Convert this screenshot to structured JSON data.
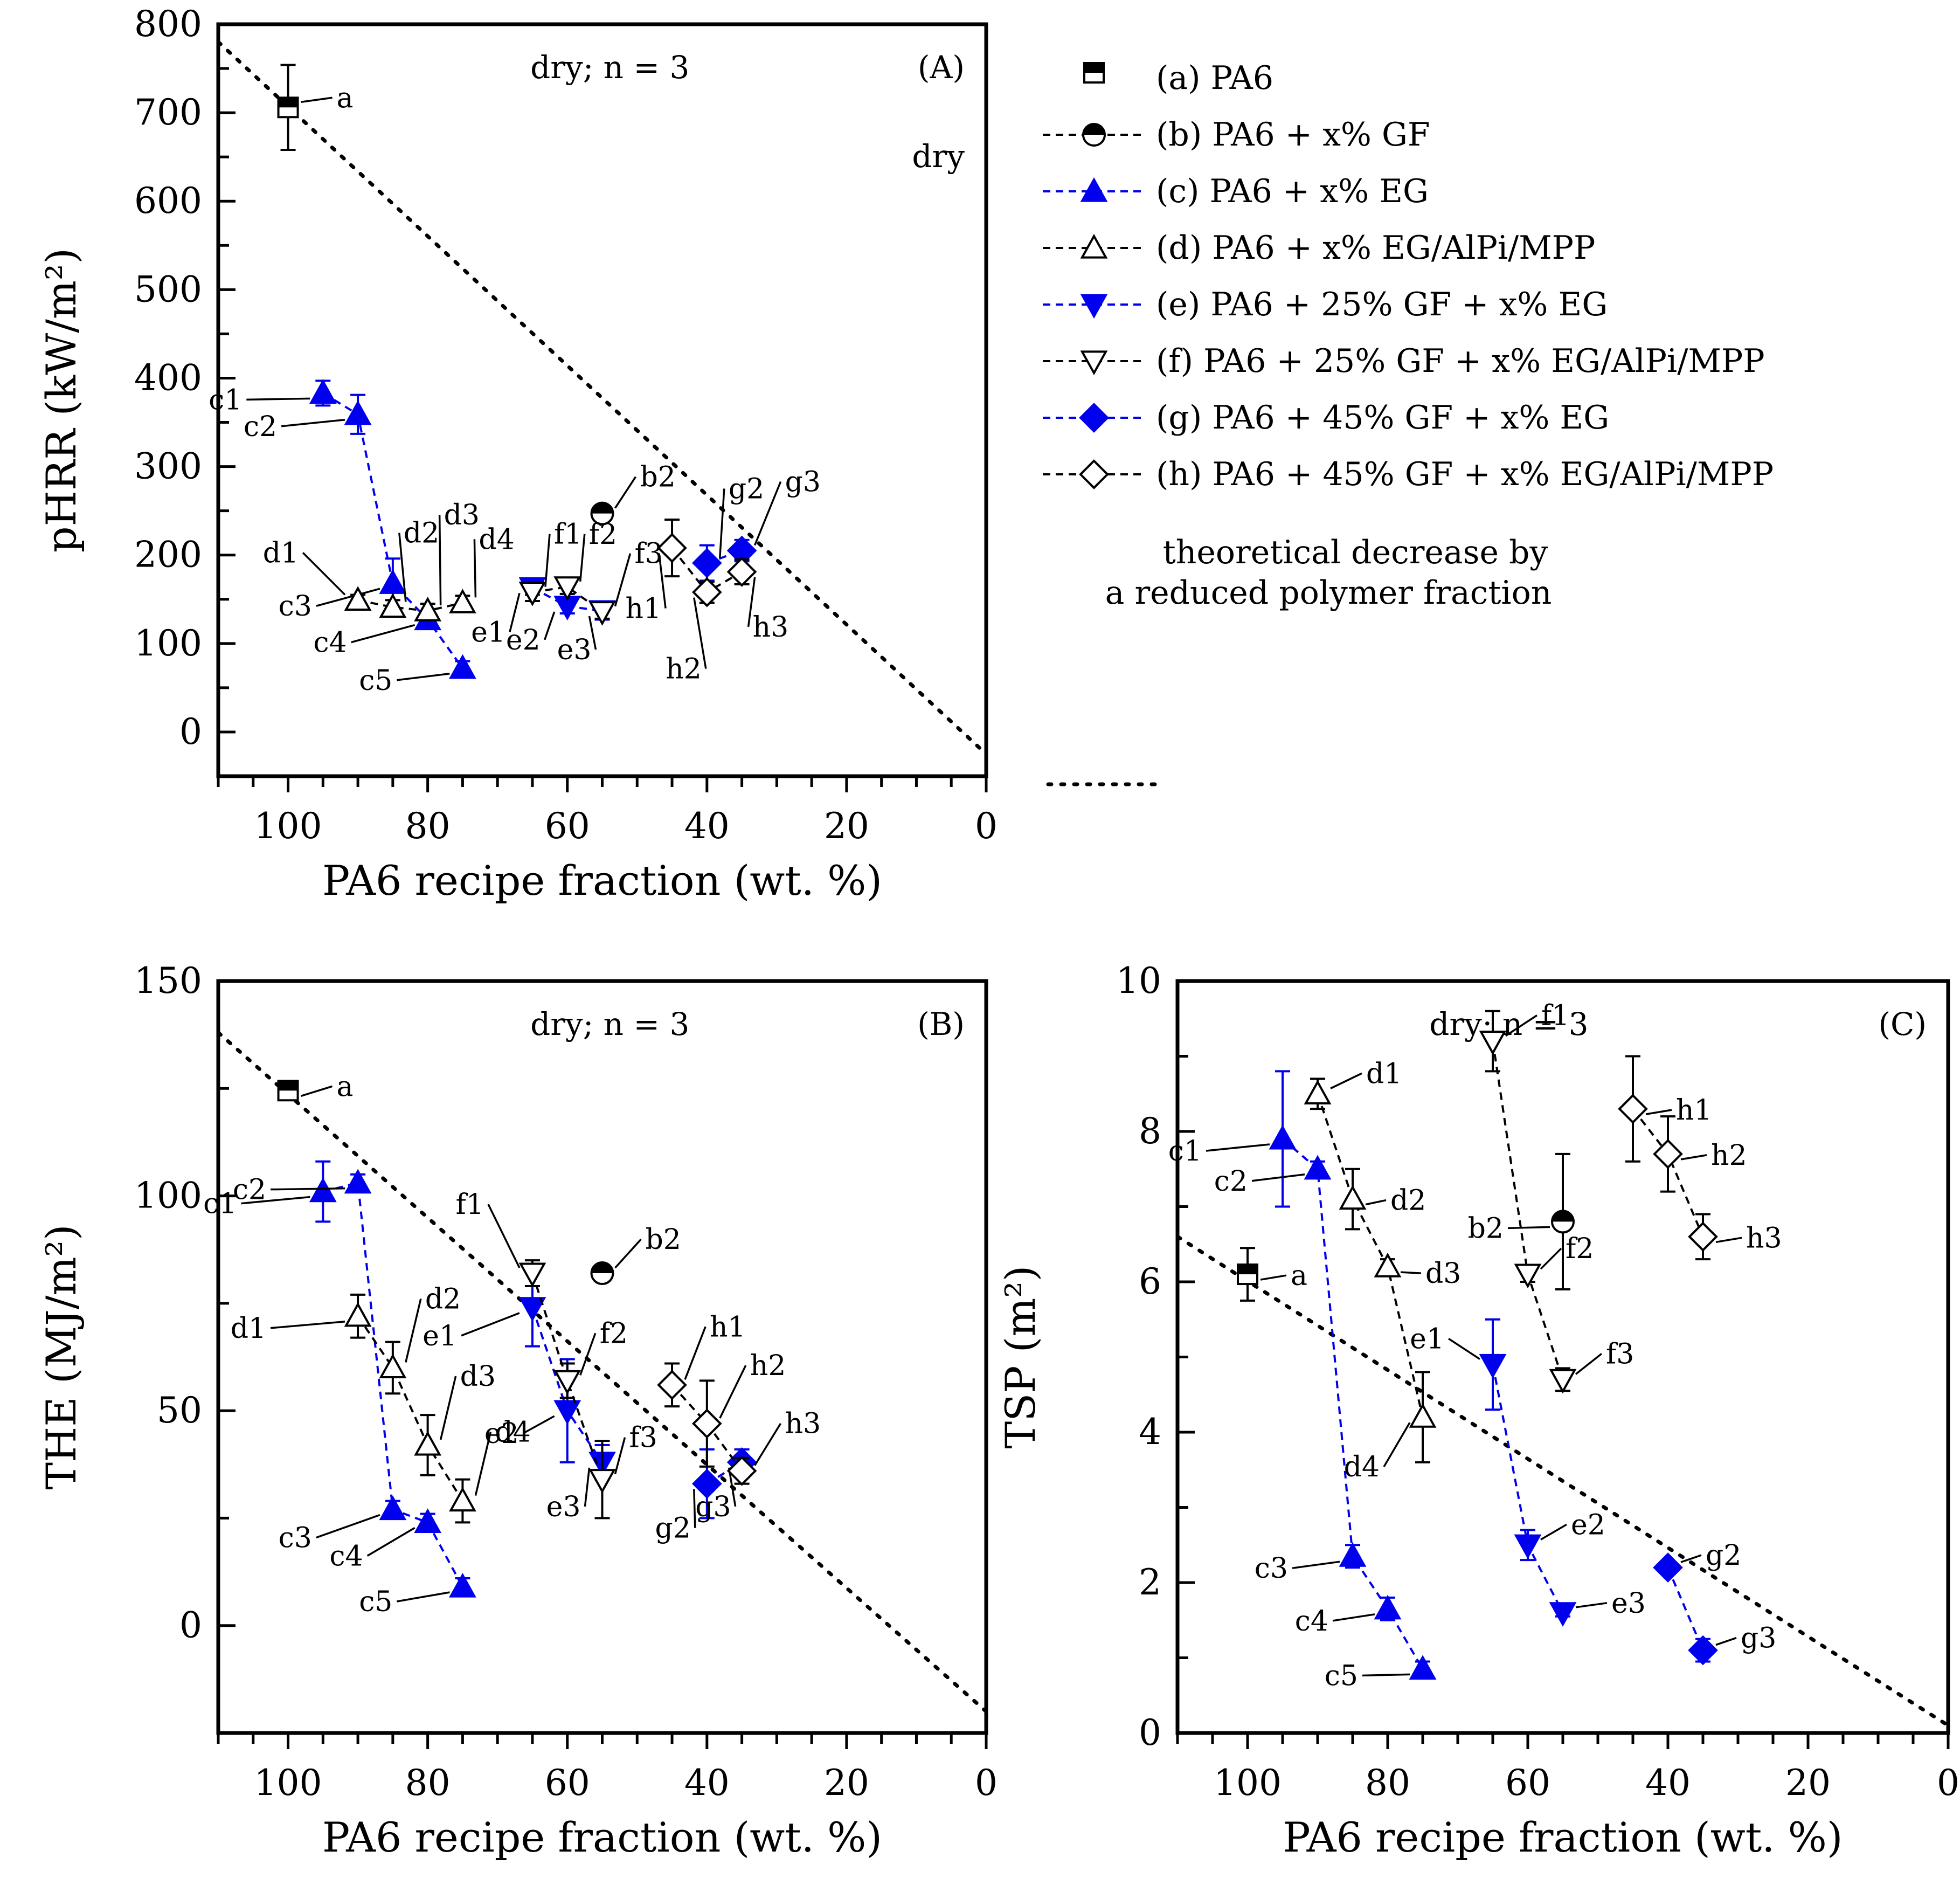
{
  "chart_data": [
    {
      "id": "A",
      "type": "scatter",
      "panel_label": "(A)",
      "condition_label": "dry; n = 3",
      "extra_label": "dry",
      "xlabel": "PA6 recipe fraction (wt. %)",
      "ylabel": "pHRR (kW/m²)",
      "xlim": [
        110,
        0
      ],
      "ylim": [
        -50,
        800
      ],
      "xticks": [
        100,
        80,
        60,
        40,
        20,
        0
      ],
      "yticks": [
        0,
        100,
        200,
        300,
        400,
        500,
        600,
        700,
        800
      ],
      "theory_line": {
        "x": [
          110,
          0
        ],
        "y": [
          780,
          -25
        ]
      },
      "series": [
        {
          "group": "a",
          "points": [
            {
              "x": 100,
              "y": 706,
              "err": 48,
              "label": "a"
            }
          ]
        },
        {
          "group": "b",
          "points": [
            {
              "x": 55,
              "y": 247,
              "err": 0,
              "label": "b2"
            }
          ]
        },
        {
          "group": "c",
          "points": [
            {
              "x": 95,
              "y": 383,
              "err": 14,
              "label": "c1"
            },
            {
              "x": 90,
              "y": 359,
              "err": 22,
              "label": "c2"
            },
            {
              "x": 85,
              "y": 168,
              "err": 28,
              "label": "c3"
            },
            {
              "x": 80,
              "y": 127,
              "err": 8,
              "label": "c4"
            },
            {
              "x": 75,
              "y": 72,
              "err": 8,
              "label": "c5"
            }
          ]
        },
        {
          "group": "d",
          "points": [
            {
              "x": 90,
              "y": 149,
              "err": 6,
              "label": "d1"
            },
            {
              "x": 85,
              "y": 141,
              "err": 8,
              "label": "d2"
            },
            {
              "x": 80,
              "y": 137,
              "err": 8,
              "label": "d3"
            },
            {
              "x": 75,
              "y": 146,
              "err": 8,
              "label": "d4"
            }
          ]
        },
        {
          "group": "e",
          "points": [
            {
              "x": 65,
              "y": 163,
              "err": 8,
              "label": "e1"
            },
            {
              "x": 60,
              "y": 142,
              "err": 8,
              "label": "e2"
            },
            {
              "x": 55,
              "y": 137,
              "err": 10,
              "label": "e3"
            }
          ]
        },
        {
          "group": "f",
          "points": [
            {
              "x": 65,
              "y": 158,
              "err": 10,
              "label": "f1"
            },
            {
              "x": 60,
              "y": 164,
              "err": 8,
              "label": "f2"
            },
            {
              "x": 55,
              "y": 136,
              "err": 8,
              "label": "f3"
            }
          ]
        },
        {
          "group": "g",
          "points": [
            {
              "x": 40,
              "y": 191,
              "err": 20,
              "label": "g2"
            },
            {
              "x": 35,
              "y": 205,
              "err": 12,
              "label": "g3"
            }
          ]
        },
        {
          "group": "h",
          "points": [
            {
              "x": 45,
              "y": 208,
              "err": 32,
              "label": "h1"
            },
            {
              "x": 40,
              "y": 158,
              "err": 12,
              "label": "h2"
            },
            {
              "x": 35,
              "y": 181,
              "err": 14,
              "label": "h3"
            }
          ]
        }
      ]
    },
    {
      "id": "B",
      "type": "scatter",
      "panel_label": "(B)",
      "condition_label": "dry; n = 3",
      "xlabel": "PA6 recipe fraction (wt. %)",
      "ylabel": "THE (MJ/m²)",
      "xlim": [
        110,
        0
      ],
      "ylim": [
        -25,
        150
      ],
      "xticks": [
        100,
        80,
        60,
        40,
        20,
        0
      ],
      "yticks": [
        0,
        50,
        100,
        150
      ],
      "theory_line": {
        "x": [
          110,
          0
        ],
        "y": [
          138,
          -20
        ]
      },
      "series": [
        {
          "group": "a",
          "points": [
            {
              "x": 100,
              "y": 124.5,
              "err": 2,
              "label": "a"
            }
          ]
        },
        {
          "group": "b",
          "points": [
            {
              "x": 55,
              "y": 82,
              "err": 0,
              "label": "b2"
            }
          ]
        },
        {
          "group": "c",
          "points": [
            {
              "x": 95,
              "y": 101,
              "err": 7,
              "label": "c1"
            },
            {
              "x": 90,
              "y": 103,
              "err": 2,
              "label": "c2"
            },
            {
              "x": 85,
              "y": 27,
              "err": 2,
              "label": "c3"
            },
            {
              "x": 80,
              "y": 24,
              "err": 2,
              "label": "c4"
            },
            {
              "x": 75,
              "y": 9,
              "err": 2,
              "label": "c5"
            }
          ]
        },
        {
          "group": "d",
          "points": [
            {
              "x": 90,
              "y": 72,
              "err": 5,
              "label": "d1"
            },
            {
              "x": 85,
              "y": 60,
              "err": 6,
              "label": "d2"
            },
            {
              "x": 80,
              "y": 42,
              "err": 7,
              "label": "d3"
            },
            {
              "x": 75,
              "y": 29,
              "err": 5,
              "label": "d4"
            }
          ]
        },
        {
          "group": "e",
          "points": [
            {
              "x": 65,
              "y": 74,
              "err": 9,
              "label": "e1"
            },
            {
              "x": 60,
              "y": 50,
              "err": 12,
              "label": "e2"
            },
            {
              "x": 55,
              "y": 38,
              "err": 4,
              "label": "e3"
            }
          ]
        },
        {
          "group": "f",
          "points": [
            {
              "x": 65,
              "y": 82,
              "err": 3,
              "label": "f1"
            },
            {
              "x": 60,
              "y": 57,
              "err": 4,
              "label": "f2"
            },
            {
              "x": 55,
              "y": 34,
              "err": 9,
              "label": "f3"
            }
          ]
        },
        {
          "group": "g",
          "points": [
            {
              "x": 40,
              "y": 33,
              "err": 8,
              "label": "g2"
            },
            {
              "x": 35,
              "y": 38,
              "err": 3,
              "label": "g3"
            }
          ]
        },
        {
          "group": "h",
          "points": [
            {
              "x": 45,
              "y": 56,
              "err": 5,
              "label": "h1"
            },
            {
              "x": 40,
              "y": 47,
              "err": 10,
              "label": "h2"
            },
            {
              "x": 35,
              "y": 36,
              "err": 3,
              "label": "h3"
            }
          ]
        }
      ]
    },
    {
      "id": "C",
      "type": "scatter",
      "panel_label": "(C)",
      "condition_label": "dry; n = 3",
      "xlabel": "PA6 recipe fraction (wt. %)",
      "ylabel": "TSP (m²)",
      "xlim": [
        110,
        0
      ],
      "ylim": [
        0,
        10
      ],
      "xticks": [
        100,
        80,
        60,
        40,
        20,
        0
      ],
      "yticks": [
        0,
        2,
        4,
        6,
        8,
        10
      ],
      "theory_line": {
        "x": [
          110,
          0
        ],
        "y": [
          6.6,
          0.1
        ]
      },
      "series": [
        {
          "group": "a",
          "points": [
            {
              "x": 100,
              "y": 6.1,
              "err": 0.35,
              "label": "a"
            }
          ]
        },
        {
          "group": "b",
          "points": [
            {
              "x": 55,
              "y": 6.8,
              "err": 0.9,
              "label": "b2"
            }
          ]
        },
        {
          "group": "c",
          "points": [
            {
              "x": 95,
              "y": 7.9,
              "err": 0.9,
              "label": "c1"
            },
            {
              "x": 90,
              "y": 7.5,
              "err": 0.1,
              "label": "c2"
            },
            {
              "x": 85,
              "y": 2.35,
              "err": 0.15,
              "label": "c3"
            },
            {
              "x": 80,
              "y": 1.65,
              "err": 0.15,
              "label": "c4"
            },
            {
              "x": 75,
              "y": 0.85,
              "err": 0.1,
              "label": "c5"
            }
          ]
        },
        {
          "group": "d",
          "points": [
            {
              "x": 90,
              "y": 8.5,
              "err": 0.2,
              "label": "d1"
            },
            {
              "x": 85,
              "y": 7.1,
              "err": 0.4,
              "label": "d2"
            },
            {
              "x": 80,
              "y": 6.2,
              "err": 0.1,
              "label": "d3"
            },
            {
              "x": 75,
              "y": 4.2,
              "err": 0.6,
              "label": "d4"
            }
          ]
        },
        {
          "group": "e",
          "points": [
            {
              "x": 65,
              "y": 4.9,
              "err": 0.6,
              "label": "e1"
            },
            {
              "x": 60,
              "y": 2.5,
              "err": 0.2,
              "label": "e2"
            },
            {
              "x": 55,
              "y": 1.6,
              "err": 0.05,
              "label": "e3"
            }
          ]
        },
        {
          "group": "f",
          "points": [
            {
              "x": 65,
              "y": 9.2,
              "err": 0.4,
              "label": "f1"
            },
            {
              "x": 60,
              "y": 6.1,
              "err": 0.1,
              "label": "f2"
            },
            {
              "x": 55,
              "y": 4.7,
              "err": 0.15,
              "label": "f3"
            }
          ]
        },
        {
          "group": "g",
          "points": [
            {
              "x": 40,
              "y": 2.2,
              "err": 0.05,
              "label": "g2"
            },
            {
              "x": 35,
              "y": 1.1,
              "err": 0.15,
              "label": "g3"
            }
          ]
        },
        {
          "group": "h",
          "points": [
            {
              "x": 45,
              "y": 8.3,
              "err": 0.7,
              "label": "h1"
            },
            {
              "x": 40,
              "y": 7.7,
              "err": 0.5,
              "label": "h2"
            },
            {
              "x": 35,
              "y": 6.6,
              "err": 0.3,
              "label": "h3"
            }
          ]
        }
      ]
    }
  ],
  "legend": {
    "entries": [
      {
        "group": "a",
        "label": "(a) PA6"
      },
      {
        "group": "b",
        "label": "(b) PA6 + x% GF"
      },
      {
        "group": "c",
        "label": "(c) PA6 + x% EG"
      },
      {
        "group": "d",
        "label": "(d) PA6 + x% EG/AlPi/MPP"
      },
      {
        "group": "e",
        "label": "(e) PA6 + 25% GF + x% EG"
      },
      {
        "group": "f",
        "label": "(f) PA6 + 25% GF + x% EG/AlPi/MPP"
      },
      {
        "group": "g",
        "label": "(g) PA6 + 45% GF + x% EG"
      },
      {
        "group": "h",
        "label": "(h) PA6 + 45% GF + x% EG/AlPi/MPP"
      }
    ],
    "theory_line_1": "theoretical decrease by",
    "theory_line_2": "a reduced polymer fraction"
  },
  "colors": {
    "blue": "#0000ee",
    "black": "#000000"
  }
}
